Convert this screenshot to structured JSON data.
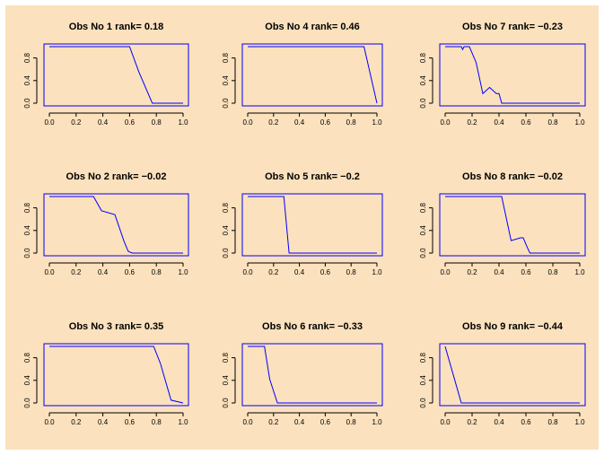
{
  "figure": {
    "background": "#fbe1bd",
    "line_color": "#0000ff",
    "frame_color": "#0000ff"
  },
  "chart_data": [
    {
      "type": "line",
      "title": "Obs No  1 rank= 0.18",
      "xlim": [
        0,
        1
      ],
      "ylim": [
        0,
        1
      ],
      "xticks": [
        "0.0",
        "0.2",
        "0.4",
        "0.6",
        "0.8",
        "1.0"
      ],
      "yticks": [
        "0.0",
        "0.4",
        "0.8"
      ],
      "x": [
        0,
        0.6,
        0.67,
        0.77,
        1.0
      ],
      "y": [
        1,
        1,
        0.55,
        0,
        0
      ]
    },
    {
      "type": "line",
      "title": "Obs No  4 rank= 0.46",
      "xlim": [
        0,
        1
      ],
      "ylim": [
        0,
        1
      ],
      "xticks": [
        "0.0",
        "0.2",
        "0.4",
        "0.6",
        "0.8",
        "1.0"
      ],
      "yticks": [
        "0.0",
        "0.4",
        "0.8"
      ],
      "x": [
        0,
        0.9,
        1.0
      ],
      "y": [
        1,
        1,
        0
      ]
    },
    {
      "type": "line",
      "title": "Obs No  7 rank= −0.23",
      "xlim": [
        0,
        1
      ],
      "ylim": [
        0,
        1
      ],
      "xticks": [
        "0.0",
        "0.2",
        "0.4",
        "0.6",
        "0.8",
        "1.0"
      ],
      "yticks": [
        "0.0",
        "0.4",
        "0.8"
      ],
      "x": [
        0,
        0.12,
        0.13,
        0.14,
        0.18,
        0.23,
        0.28,
        0.33,
        0.38,
        0.4,
        0.42,
        1.0
      ],
      "y": [
        1,
        1,
        0.95,
        1,
        1,
        0.72,
        0.17,
        0.28,
        0.17,
        0.17,
        0,
        0
      ]
    },
    {
      "type": "line",
      "title": "Obs No  2 rank= −0.02",
      "xlim": [
        0,
        1
      ],
      "ylim": [
        0,
        1
      ],
      "xticks": [
        "0.0",
        "0.2",
        "0.4",
        "0.6",
        "0.8",
        "1.0"
      ],
      "yticks": [
        "0.0",
        "0.4",
        "0.8"
      ],
      "x": [
        0,
        0.33,
        0.39,
        0.49,
        0.56,
        0.59,
        0.62,
        1.0
      ],
      "y": [
        1,
        1,
        0.75,
        0.68,
        0.2,
        0.03,
        0,
        0
      ]
    },
    {
      "type": "line",
      "title": "Obs No  5 rank= −0.2",
      "xlim": [
        0,
        1
      ],
      "ylim": [
        0,
        1
      ],
      "xticks": [
        "0.0",
        "0.2",
        "0.4",
        "0.6",
        "0.8",
        "1.0"
      ],
      "yticks": [
        "0.0",
        "0.4",
        "0.8"
      ],
      "x": [
        0,
        0.28,
        0.32,
        1.0
      ],
      "y": [
        1,
        1,
        0,
        0
      ]
    },
    {
      "type": "line",
      "title": "Obs No  8 rank= −0.02",
      "xlim": [
        0,
        1
      ],
      "ylim": [
        0,
        1
      ],
      "xticks": [
        "0.0",
        "0.2",
        "0.4",
        "0.6",
        "0.8",
        "1.0"
      ],
      "yticks": [
        "0.0",
        "0.4",
        "0.8"
      ],
      "x": [
        0,
        0.42,
        0.49,
        0.56,
        0.58,
        0.61,
        0.63,
        1.0
      ],
      "y": [
        1,
        1,
        0.22,
        0.27,
        0.27,
        0.1,
        0,
        0
      ]
    },
    {
      "type": "line",
      "title": "Obs No  3 rank= 0.35",
      "xlim": [
        0,
        1
      ],
      "ylim": [
        0,
        1
      ],
      "xticks": [
        "0.0",
        "0.2",
        "0.4",
        "0.6",
        "0.8",
        "1.0"
      ],
      "yticks": [
        "0.0",
        "0.4",
        "0.8"
      ],
      "x": [
        0,
        0.78,
        0.83,
        0.91,
        1.0
      ],
      "y": [
        1,
        1,
        0.7,
        0.05,
        0
      ]
    },
    {
      "type": "line",
      "title": "Obs No  6 rank= −0.33",
      "xlim": [
        0,
        1
      ],
      "ylim": [
        0,
        1
      ],
      "xticks": [
        "0.0",
        "0.2",
        "0.4",
        "0.6",
        "0.8",
        "1.0"
      ],
      "yticks": [
        "0.0",
        "0.4",
        "0.8"
      ],
      "x": [
        0,
        0.13,
        0.17,
        0.23,
        1.0
      ],
      "y": [
        1,
        1,
        0.42,
        0,
        0
      ]
    },
    {
      "type": "line",
      "title": "Obs No  9 rank= −0.44",
      "xlim": [
        0,
        1
      ],
      "ylim": [
        0,
        1
      ],
      "xticks": [
        "0.0",
        "0.2",
        "0.4",
        "0.6",
        "0.8",
        "1.0"
      ],
      "yticks": [
        "0.0",
        "0.4",
        "0.8"
      ],
      "x": [
        0,
        0.12,
        1.0
      ],
      "y": [
        1,
        0,
        0
      ]
    }
  ]
}
